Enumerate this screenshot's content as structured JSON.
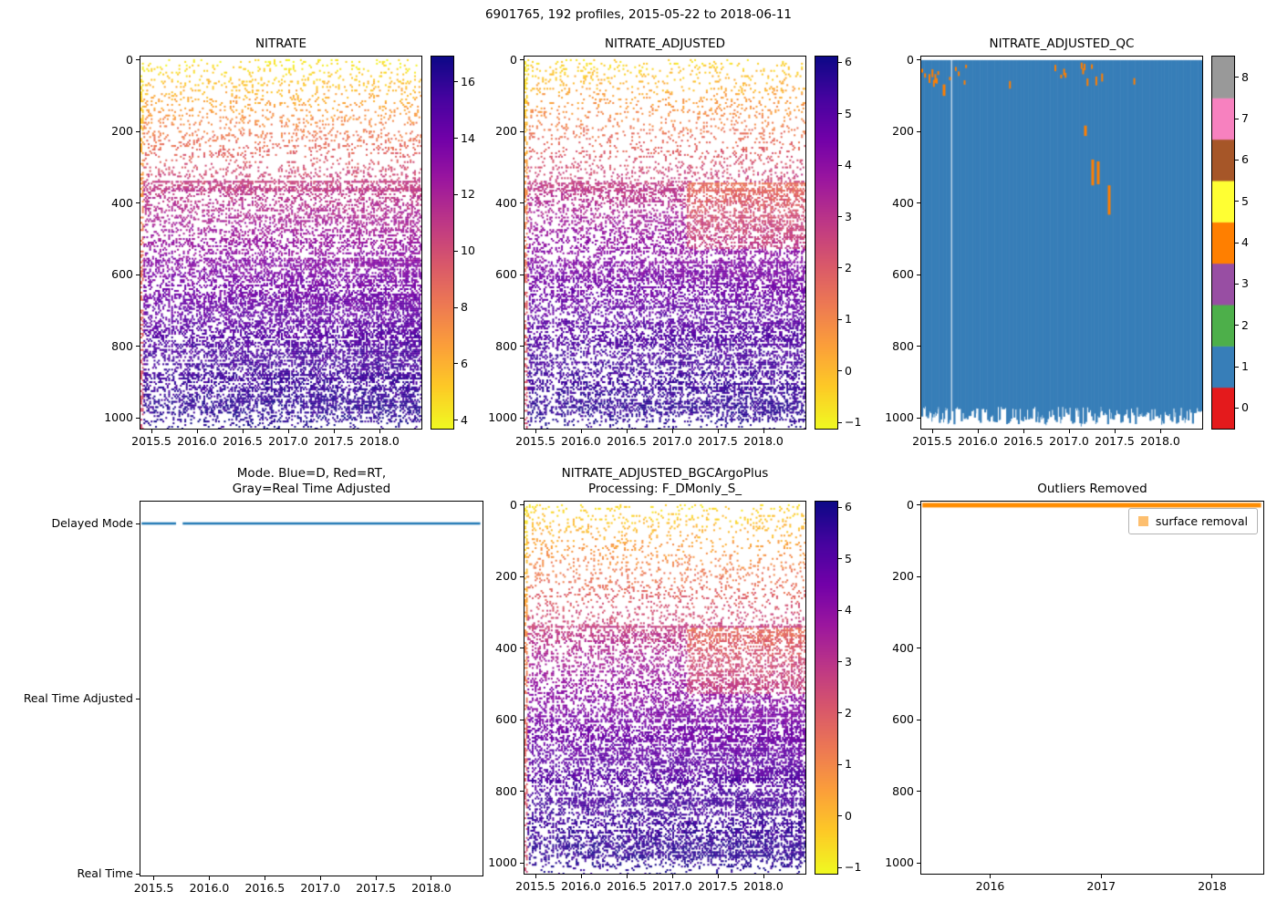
{
  "figure_title": "6901765, 192 profiles, 2015-05-22 to 2018-06-11",
  "chart_data": [
    {
      "id": "nitrate",
      "type": "profile-heatmap",
      "title": "NITRATE",
      "x_tick_values": [
        2015.5,
        2016.0,
        2016.5,
        2017.0,
        2017.5,
        2018.0
      ],
      "x_tick_labels": [
        "2015.5",
        "2016.0",
        "2016.5",
        "2017.0",
        "2017.5",
        "2018.0"
      ],
      "y_tick_values": [
        0,
        200,
        400,
        600,
        800,
        1000
      ],
      "y_tick_labels": [
        "0",
        "200",
        "400",
        "600",
        "800",
        "1000"
      ],
      "x_range": [
        2015.38,
        2018.46
      ],
      "y_range": [
        -10,
        1030
      ],
      "y_inverted": true,
      "n_profiles": 192,
      "time_start": 2015.39,
      "time_end": 2018.44,
      "gap_profile": 20,
      "colorbar": {
        "colormap": "plasma_r",
        "vmin": 3.7,
        "vmax": 16.9,
        "tick_values": [
          4,
          6,
          8,
          10,
          12,
          14,
          16
        ],
        "tick_labels": [
          "4",
          "6",
          "8",
          "10",
          "12",
          "14",
          "16"
        ]
      },
      "depth_value_anchors": [
        [
          0,
          4.2
        ],
        [
          80,
          5.8
        ],
        [
          150,
          7.0
        ],
        [
          250,
          8.8
        ],
        [
          350,
          10.8
        ],
        [
          450,
          12.0
        ],
        [
          600,
          13.6
        ],
        [
          800,
          15.2
        ],
        [
          1030,
          16.4
        ]
      ],
      "warm_patch": false,
      "seed": 7
    },
    {
      "id": "nitrate_adjusted",
      "type": "profile-heatmap",
      "title": "NITRATE_ADJUSTED",
      "x_tick_values": [
        2015.5,
        2016.0,
        2016.5,
        2017.0,
        2017.5,
        2018.0
      ],
      "x_tick_labels": [
        "2015.5",
        "2016.0",
        "2016.5",
        "2017.0",
        "2017.5",
        "2018.0"
      ],
      "y_tick_values": [
        0,
        200,
        400,
        600,
        800,
        1000
      ],
      "y_tick_labels": [
        "0",
        "200",
        "400",
        "600",
        "800",
        "1000"
      ],
      "x_range": [
        2015.38,
        2018.46
      ],
      "y_range": [
        -10,
        1030
      ],
      "y_inverted": true,
      "n_profiles": 192,
      "time_start": 2015.39,
      "time_end": 2018.44,
      "gap_profile": 20,
      "colorbar": {
        "colormap": "plasma_r",
        "vmin": -1.12,
        "vmax": 6.11,
        "tick_values": [
          -1,
          0,
          1,
          2,
          3,
          4,
          5,
          6
        ],
        "tick_labels": [
          "−1",
          "0",
          "1",
          "2",
          "3",
          "4",
          "5",
          "6"
        ]
      },
      "depth_value_anchors": [
        [
          0,
          -0.6
        ],
        [
          80,
          0.2
        ],
        [
          150,
          0.9
        ],
        [
          250,
          1.8
        ],
        [
          350,
          2.8
        ],
        [
          450,
          3.6
        ],
        [
          600,
          4.4
        ],
        [
          800,
          5.2
        ],
        [
          1030,
          5.8
        ]
      ],
      "warm_patch": true,
      "seed": 11
    },
    {
      "id": "nitrate_adjusted_qc",
      "type": "qc-heatmap",
      "title": "NITRATE_ADJUSTED_QC",
      "x_tick_values": [
        2015.5,
        2016.0,
        2016.5,
        2017.0,
        2017.5,
        2018.0
      ],
      "x_tick_labels": [
        "2015.5",
        "2016.0",
        "2016.5",
        "2017.0",
        "2017.5",
        "2018.0"
      ],
      "y_tick_values": [
        0,
        200,
        400,
        600,
        800,
        1000
      ],
      "y_tick_labels": [
        "0",
        "200",
        "400",
        "600",
        "800",
        "1000"
      ],
      "x_range": [
        2015.38,
        2018.46
      ],
      "y_range": [
        -10,
        1030
      ],
      "y_inverted": true,
      "n_profiles": 192,
      "time_start": 2015.39,
      "time_end": 2018.44,
      "gap_profile": 20,
      "dominant_qc": 1,
      "surface_outlier_qc": 4,
      "fill_color": "#377eb8",
      "outlier_color": "#ff7f00",
      "max_depth_mean": 988,
      "qc4_bars": [
        [
          2015.63,
          68,
          100
        ],
        [
          2017.18,
          183,
          212
        ],
        [
          2017.26,
          278,
          350
        ],
        [
          2017.32,
          283,
          347
        ],
        [
          2017.44,
          350,
          432
        ]
      ],
      "colorbar": {
        "tick_values": [
          0,
          1,
          2,
          3,
          4,
          5,
          6,
          7,
          8
        ],
        "tick_labels": [
          "0",
          "1",
          "2",
          "3",
          "4",
          "5",
          "6",
          "7",
          "8"
        ],
        "colors": [
          "#e41a1c",
          "#377eb8",
          "#4daf4a",
          "#984ea3",
          "#ff7f00",
          "#ffff33",
          "#a65628",
          "#f781bf",
          "#999999"
        ]
      },
      "seed": 13
    },
    {
      "id": "mode",
      "type": "mode-line",
      "title": "Mode. Blue=D, Red=RT,\nGray=Real Time Adjusted",
      "x_tick_values": [
        2015.5,
        2016.0,
        2016.5,
        2017.0,
        2017.5,
        2018.0
      ],
      "x_tick_labels": [
        "2015.5",
        "2016.0",
        "2016.5",
        "2017.0",
        "2017.5",
        "2018.0"
      ],
      "x_range": [
        2015.38,
        2018.46
      ],
      "y_categories": [
        "Delayed Mode",
        "Real Time Adjusted",
        "Real Time"
      ],
      "line_color": "#1f77b4",
      "series": {
        "name": "mode",
        "value": "Delayed Mode",
        "x_start": 2015.39,
        "x_end": 2018.44,
        "gaps": [
          [
            2015.7,
            2015.76
          ]
        ]
      }
    },
    {
      "id": "nitrate_adjusted_bgcargoplus",
      "type": "profile-heatmap",
      "title": "NITRATE_ADJUSTED_BGCArgoPlus\nProcessing: F_DMonly_S_",
      "x_tick_values": [
        2015.5,
        2016.0,
        2016.5,
        2017.0,
        2017.5,
        2018.0
      ],
      "x_tick_labels": [
        "2015.5",
        "2016.0",
        "2016.5",
        "2017.0",
        "2017.5",
        "2018.0"
      ],
      "y_tick_values": [
        0,
        200,
        400,
        600,
        800,
        1000
      ],
      "y_tick_labels": [
        "0",
        "200",
        "400",
        "600",
        "800",
        "1000"
      ],
      "x_range": [
        2015.38,
        2018.46
      ],
      "y_range": [
        -10,
        1030
      ],
      "y_inverted": true,
      "n_profiles": 192,
      "time_start": 2015.39,
      "time_end": 2018.44,
      "gap_profile": 20,
      "colorbar": {
        "colormap": "plasma_r",
        "vmin": -1.12,
        "vmax": 6.11,
        "tick_values": [
          -1,
          0,
          1,
          2,
          3,
          4,
          5,
          6
        ],
        "tick_labels": [
          "−1",
          "0",
          "1",
          "2",
          "3",
          "4",
          "5",
          "6"
        ]
      },
      "depth_value_anchors": [
        [
          0,
          -0.6
        ],
        [
          80,
          0.2
        ],
        [
          150,
          0.9
        ],
        [
          250,
          1.8
        ],
        [
          350,
          2.8
        ],
        [
          450,
          3.6
        ],
        [
          600,
          4.4
        ],
        [
          800,
          5.2
        ],
        [
          1030,
          5.8
        ]
      ],
      "warm_patch": true,
      "seed": 17
    },
    {
      "id": "outliers_removed",
      "type": "outlier-line",
      "title": "Outliers Removed",
      "x_tick_values": [
        2016,
        2017,
        2018
      ],
      "x_tick_labels": [
        "2016",
        "2017",
        "2018"
      ],
      "y_tick_values": [
        0,
        200,
        400,
        600,
        800,
        1000
      ],
      "y_tick_labels": [
        "0",
        "200",
        "400",
        "600",
        "800",
        "1000"
      ],
      "x_range": [
        2015.38,
        2018.46
      ],
      "y_range": [
        -10,
        1030
      ],
      "y_inverted": true,
      "series": [
        {
          "name": "surface removal",
          "depth": 0,
          "x_start": 2015.39,
          "x_end": 2018.44,
          "color": "#ff8c00"
        }
      ],
      "legend": {
        "position": "upper right",
        "items": [
          {
            "label": "surface removal",
            "marker_color": "#fdbf6f"
          }
        ]
      }
    }
  ]
}
